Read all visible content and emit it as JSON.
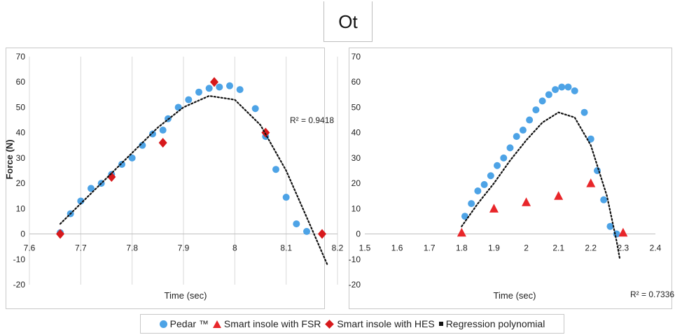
{
  "figure_title": "Ot",
  "colors": {
    "pedar": "#4da3e6",
    "fsr": "#e8262a",
    "hes": "#d7191c",
    "regression": "#111111",
    "grid": "#d9d9d9"
  },
  "legend": [
    {
      "label": "Pedar ™",
      "marker": "circle"
    },
    {
      "label": "Smart insole with FSR",
      "marker": "triangle"
    },
    {
      "label": "Smart insole with HES",
      "marker": "diamond"
    },
    {
      "label": "Regression polynomial",
      "marker": "square"
    }
  ],
  "chart_data": [
    {
      "type": "scatter",
      "ylabel": "Force (N)",
      "xlabel": "Time (sec)",
      "xlim": [
        7.6,
        8.2
      ],
      "ylim": [
        -20,
        70
      ],
      "x_ticks": [
        "7.6",
        "7.7",
        "7.8",
        "7.9",
        "8",
        "8.1",
        "8.2"
      ],
      "y_ticks": [
        "-20",
        "-10",
        "0",
        "10",
        "20",
        "30",
        "40",
        "50",
        "60",
        "70"
      ],
      "grid": "vertical",
      "r_squared": "R² = 0.9418",
      "series": [
        {
          "key": "pedar",
          "marker": "circle",
          "points": [
            [
              7.66,
              0.5
            ],
            [
              7.68,
              8
            ],
            [
              7.7,
              13
            ],
            [
              7.72,
              18
            ],
            [
              7.74,
              20
            ],
            [
              7.76,
              23.5
            ],
            [
              7.78,
              27.5
            ],
            [
              7.8,
              30
            ],
            [
              7.82,
              35
            ],
            [
              7.84,
              39.5
            ],
            [
              7.86,
              41
            ],
            [
              7.87,
              45.5
            ],
            [
              7.89,
              50
            ],
            [
              7.91,
              53
            ],
            [
              7.93,
              56
            ],
            [
              7.95,
              57.5
            ],
            [
              7.97,
              58
            ],
            [
              7.99,
              58.5
            ],
            [
              8.01,
              57
            ],
            [
              8.04,
              49.5
            ],
            [
              8.06,
              38.5
            ],
            [
              8.08,
              25.5
            ],
            [
              8.1,
              14.5
            ],
            [
              8.12,
              4
            ],
            [
              8.14,
              1
            ]
          ]
        },
        {
          "key": "hes",
          "marker": "diamond",
          "points": [
            [
              7.66,
              0
            ],
            [
              7.76,
              22.5
            ],
            [
              7.86,
              36
            ],
            [
              7.96,
              60
            ],
            [
              8.06,
              40
            ],
            [
              8.17,
              0
            ]
          ]
        },
        {
          "key": "regression",
          "marker": "line",
          "points": [
            [
              7.66,
              4
            ],
            [
              7.7,
              12
            ],
            [
              7.75,
              22
            ],
            [
              7.8,
              32
            ],
            [
              7.85,
              42
            ],
            [
              7.9,
              50
            ],
            [
              7.95,
              54.5
            ],
            [
              8.0,
              53
            ],
            [
              8.05,
              43
            ],
            [
              8.1,
              25
            ],
            [
              8.15,
              2
            ],
            [
              8.18,
              -12
            ]
          ]
        }
      ]
    },
    {
      "type": "scatter",
      "ylabel": "",
      "xlabel": "Time (sec)",
      "xlim": [
        1.5,
        2.4
      ],
      "ylim": [
        -20,
        70
      ],
      "x_ticks": [
        "1.5",
        "1.6",
        "1.7",
        "1.8",
        "1.9",
        "2",
        "2.1",
        "2.2",
        "2.3",
        "2.4"
      ],
      "y_ticks": [
        "-20",
        "-10",
        "0",
        "10",
        "20",
        "30",
        "40",
        "50",
        "60",
        "70"
      ],
      "grid": "none",
      "r_squared": "R² = 0.7336",
      "series": [
        {
          "key": "pedar",
          "marker": "circle",
          "points": [
            [
              1.81,
              7
            ],
            [
              1.83,
              12
            ],
            [
              1.85,
              17
            ],
            [
              1.87,
              19.5
            ],
            [
              1.89,
              23
            ],
            [
              1.91,
              27
            ],
            [
              1.93,
              30
            ],
            [
              1.95,
              34
            ],
            [
              1.97,
              38.5
            ],
            [
              1.99,
              41
            ],
            [
              2.01,
              45
            ],
            [
              2.03,
              49
            ],
            [
              2.05,
              52.5
            ],
            [
              2.07,
              55
            ],
            [
              2.09,
              57
            ],
            [
              2.11,
              58
            ],
            [
              2.13,
              58
            ],
            [
              2.15,
              56.5
            ],
            [
              2.18,
              48
            ],
            [
              2.2,
              37.5
            ],
            [
              2.22,
              25
            ],
            [
              2.24,
              13.5
            ],
            [
              2.26,
              3
            ],
            [
              2.28,
              0
            ]
          ]
        },
        {
          "key": "fsr",
          "marker": "triangle",
          "points": [
            [
              1.8,
              0.5
            ],
            [
              1.9,
              10
            ],
            [
              2.0,
              12.5
            ],
            [
              2.1,
              15
            ],
            [
              2.2,
              20
            ],
            [
              2.3,
              0.5
            ]
          ]
        },
        {
          "key": "regression",
          "marker": "line",
          "points": [
            [
              1.8,
              3
            ],
            [
              1.85,
              12
            ],
            [
              1.9,
              20
            ],
            [
              1.95,
              29
            ],
            [
              2.0,
              37
            ],
            [
              2.05,
              44
            ],
            [
              2.1,
              48
            ],
            [
              2.15,
              46
            ],
            [
              2.2,
              35
            ],
            [
              2.25,
              15
            ],
            [
              2.28,
              -3
            ],
            [
              2.29,
              -10
            ]
          ]
        }
      ]
    }
  ]
}
